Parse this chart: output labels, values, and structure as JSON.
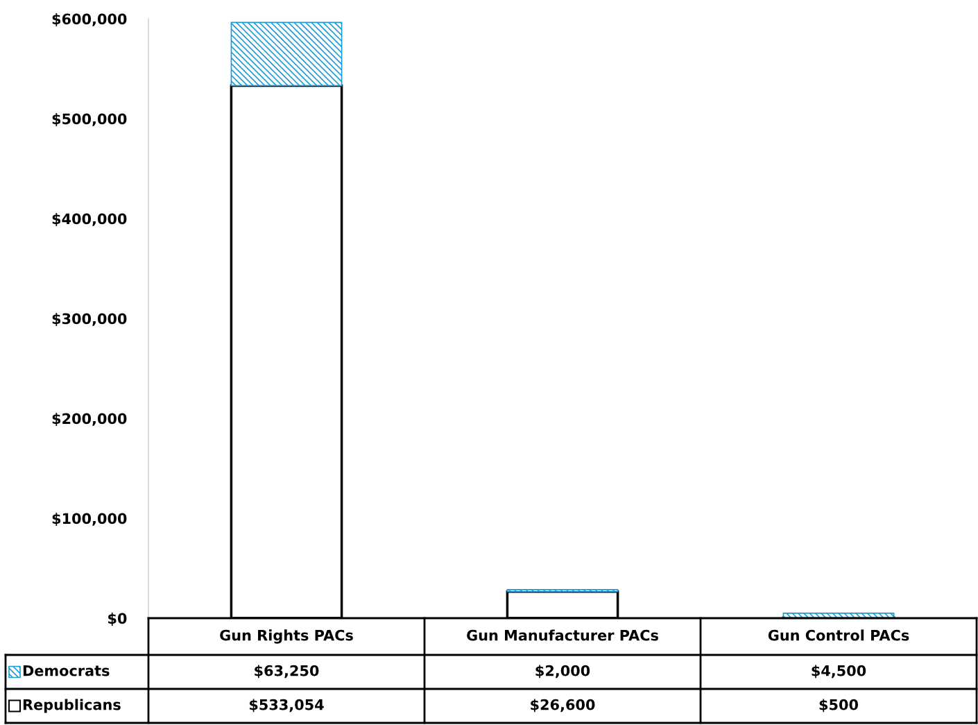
{
  "chart_data": {
    "type": "bar",
    "stacked": true,
    "categories": [
      "Gun Rights PACs",
      "Gun Manufacturer PACs",
      "Gun Control PACs"
    ],
    "series": [
      {
        "name": "Republicans",
        "color": "#ffffff",
        "values": [
          533054,
          26600,
          500
        ],
        "value_labels": [
          "$533,054",
          "$26,600",
          "$500"
        ]
      },
      {
        "name": "Democrats",
        "color": "#1e9bd7",
        "values": [
          63250,
          2000,
          4500
        ],
        "value_labels": [
          "$63,250",
          "$2,000",
          "$4,500"
        ]
      }
    ],
    "ylim": [
      0,
      600000
    ],
    "yticks": [
      {
        "value": 0,
        "label": "$0"
      },
      {
        "value": 100000,
        "label": "$100,000"
      },
      {
        "value": 200000,
        "label": "$200,000"
      },
      {
        "value": 300000,
        "label": "$300,000"
      },
      {
        "value": 400000,
        "label": "$400,000"
      },
      {
        "value": 500000,
        "label": "$500,000"
      },
      {
        "value": 600000,
        "label": "$600,000"
      }
    ],
    "grid": false,
    "legend": "bottom left"
  }
}
